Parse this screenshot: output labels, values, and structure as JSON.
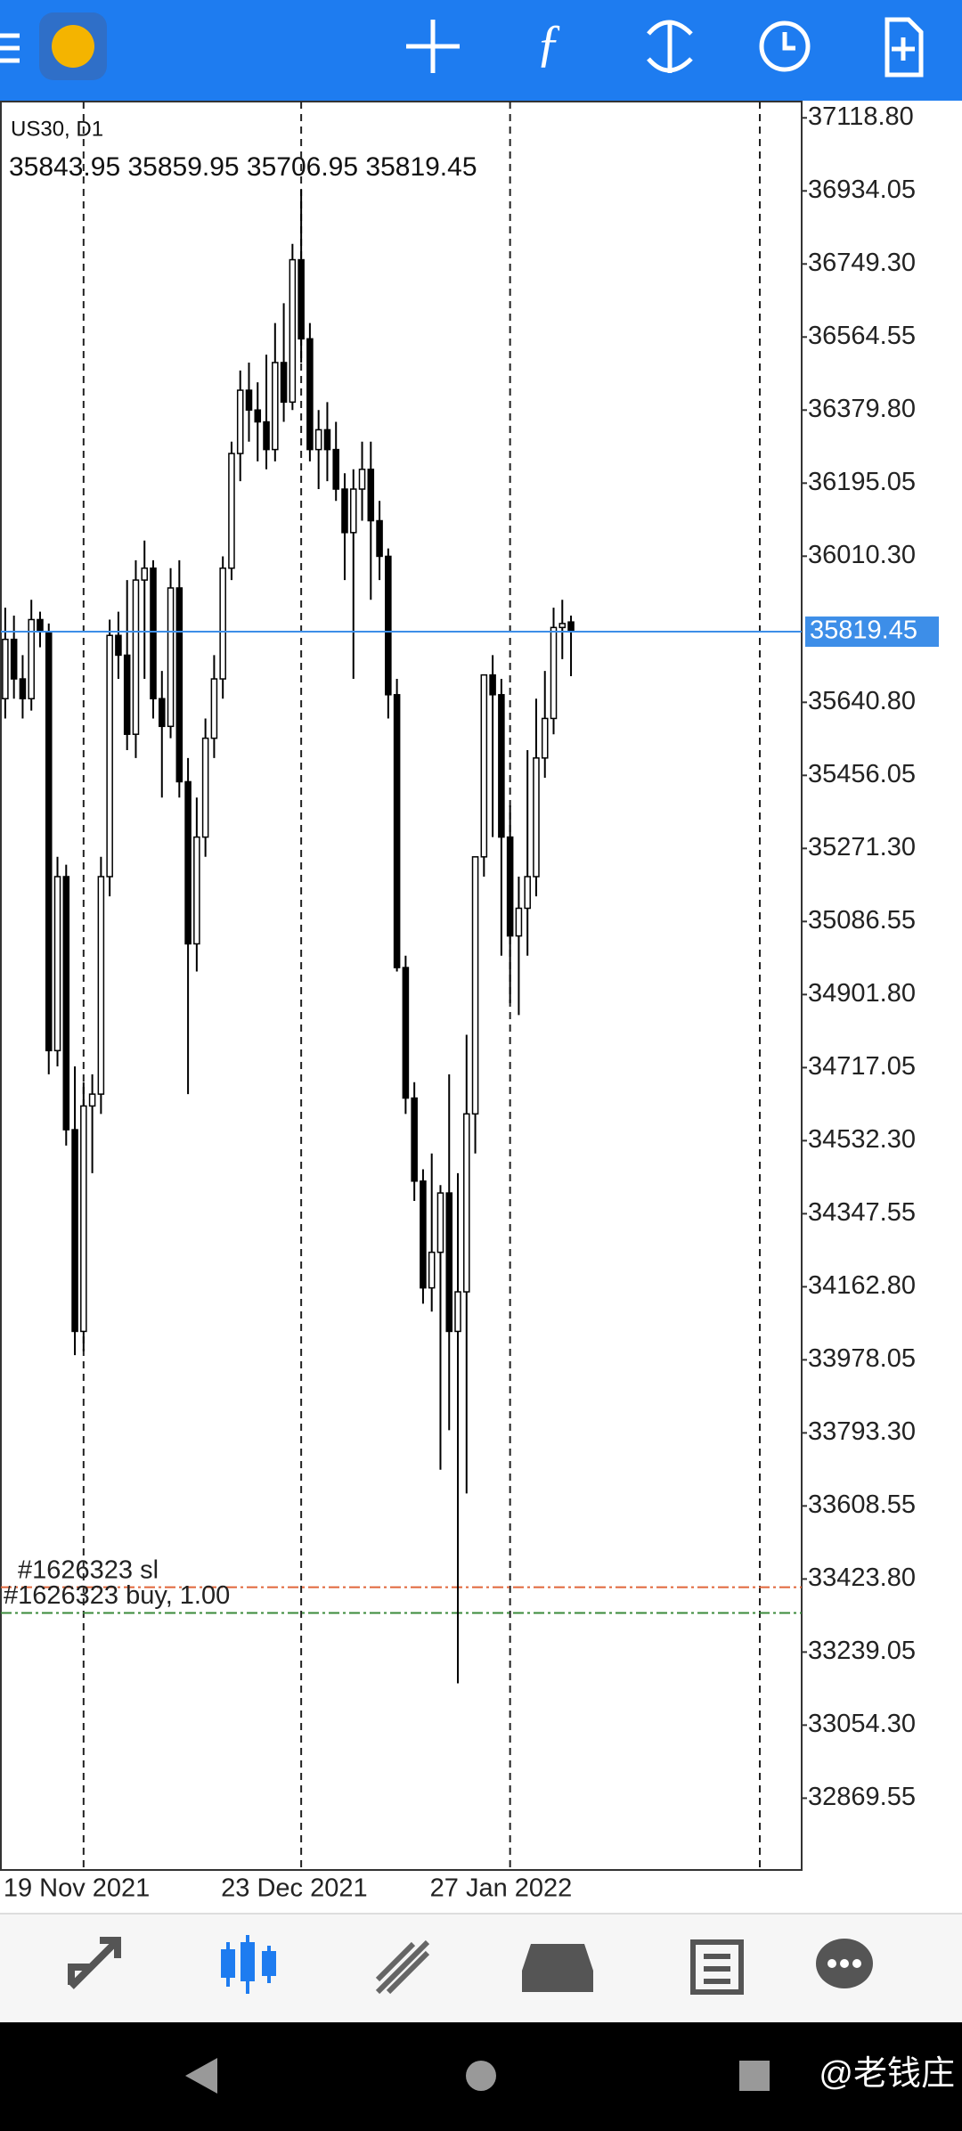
{
  "chart_data": {
    "type": "candlestick",
    "symbol": "US30, D1",
    "ohlc_text": "35843.95 35859.95 35706.95 35819.45",
    "series": {
      "open": [
        35650,
        35800,
        35700,
        35650,
        35850,
        35820,
        34760,
        35200,
        34560,
        34050,
        34620,
        34650,
        35200,
        35810,
        35760,
        35560,
        35950,
        35980,
        35650,
        35580,
        35930,
        35440,
        35030,
        35300,
        35550,
        35700,
        35980,
        36270,
        36430,
        36380,
        36350,
        36280,
        36500,
        36400,
        36760,
        36560,
        36280,
        36330,
        36280,
        36180,
        36070,
        36180,
        36230,
        36100,
        36010,
        35660,
        34970,
        34640,
        34430,
        34160,
        34250,
        34400,
        34050,
        34150,
        34600,
        35250,
        35710,
        35660,
        35300,
        35050,
        35120,
        35200,
        35500,
        35600,
        35830,
        35843.95
      ],
      "high": [
        35880,
        35860,
        35760,
        35900,
        35870,
        35840,
        35250,
        35230,
        34720,
        34680,
        34700,
        35250,
        35850,
        35870,
        35950,
        36000,
        36050,
        36000,
        35720,
        35980,
        36000,
        35500,
        35400,
        35600,
        35760,
        36010,
        36300,
        36480,
        36500,
        36450,
        36520,
        36600,
        36650,
        36800,
        36937,
        36600,
        36380,
        36400,
        36350,
        36220,
        36230,
        36300,
        36300,
        36150,
        36030,
        35700,
        35000,
        34680,
        34460,
        34500,
        34420,
        34700,
        34450,
        34800,
        35250,
        35700,
        35760,
        35700,
        35380,
        35200,
        35520,
        35650,
        35720,
        35880,
        35900,
        35859.95
      ],
      "low": [
        35600,
        35650,
        35600,
        35620,
        35780,
        34700,
        34720,
        34520,
        33990,
        34000,
        34450,
        34600,
        35150,
        35700,
        35520,
        35500,
        35700,
        35600,
        35400,
        35550,
        35400,
        34650,
        34960,
        35250,
        35500,
        35650,
        35950,
        36200,
        36300,
        36250,
        36230,
        36250,
        36350,
        36380,
        36500,
        36250,
        36180,
        36200,
        36150,
        35950,
        35700,
        36100,
        35900,
        35950,
        35600,
        34960,
        34600,
        34380,
        34120,
        34100,
        33700,
        33800,
        33160,
        33640,
        34500,
        35200,
        35300,
        35000,
        34880,
        34850,
        35000,
        35150,
        35450,
        35560,
        35750,
        35706.95
      ],
      "close": [
        35800,
        35700,
        35650,
        35850,
        35820,
        34760,
        35200,
        34560,
        34050,
        34620,
        34650,
        35200,
        35810,
        35760,
        35560,
        35950,
        35980,
        35650,
        35580,
        35930,
        35440,
        35030,
        35300,
        35550,
        35700,
        35980,
        36270,
        36430,
        36380,
        36350,
        36280,
        36500,
        36400,
        36760,
        36560,
        36280,
        36330,
        36280,
        36180,
        36070,
        36180,
        36230,
        36100,
        36010,
        35660,
        34970,
        34640,
        34430,
        34160,
        34250,
        34400,
        34050,
        34150,
        34600,
        35250,
        35710,
        35660,
        35300,
        35050,
        35120,
        35200,
        35500,
        35600,
        35830,
        35840,
        35819.45
      ]
    },
    "ylim": [
      32688,
      37160
    ],
    "yticks": [
      {
        "value": 37118.8,
        "label": "37118.80"
      },
      36934.05,
      {
        "value": 36749.3,
        "label": "36749.30"
      },
      36564.55,
      {
        "value": 36379.8,
        "label": "36379.80"
      },
      36195.05,
      {
        "value": 36010.3,
        "label": "36010.30"
      },
      {
        "value": 35640.8,
        "label": "35640.80"
      },
      35456.05,
      {
        "value": 35271.3,
        "label": "35271.30"
      },
      35086.55,
      {
        "value": 34901.8,
        "label": "34901.80"
      },
      34717.05,
      {
        "value": 34532.3,
        "label": "34532.30"
      },
      34347.55,
      {
        "value": 34162.8,
        "label": "34162.80"
      },
      33978.05,
      {
        "value": 33793.3,
        "label": "33793.30"
      },
      33608.55,
      {
        "value": 33423.8,
        "label": "33423.80"
      },
      33239.05,
      {
        "value": 33054.3,
        "label": "33054.30"
      },
      32869.55
    ],
    "xlim": [
      -0.5,
      91.5
    ],
    "xticks": [
      {
        "value": 9,
        "label": "19 Nov 2021"
      },
      {
        "value": 34,
        "label": "23 Dec 2021"
      },
      {
        "value": 58,
        "label": "27 Jan 2022"
      }
    ],
    "current_price": {
      "value": 35819.45,
      "color": "#3d8ee8"
    },
    "orders": [
      {
        "label": "#1626323 sl",
        "value": 33403,
        "color": "#e0663a"
      },
      {
        "label": "#1626323 buy, 1.00",
        "value": 33338,
        "color": "#3a8a3a"
      }
    ]
  },
  "watermark": "@老钱庄"
}
